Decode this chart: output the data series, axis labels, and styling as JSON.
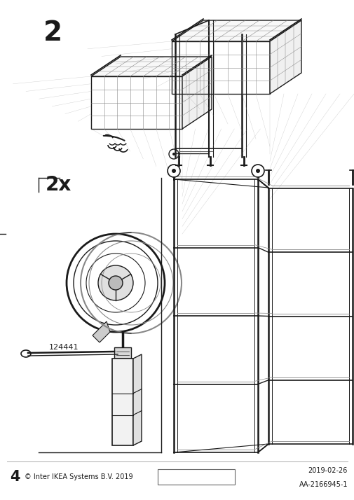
{
  "page_number": "4",
  "step_number": "2",
  "quantity_label": "2x",
  "part_number": "124441",
  "date": "2019-02-26",
  "doc_number": "AA-2166945-1",
  "copyright": "© Inter IKEA Systems B.V. 2019",
  "bg_color": "#ffffff",
  "line_color": "#1a1a1a",
  "light_gray": "#aaaaaa",
  "mid_gray": "#888888",
  "dark_gray": "#555555"
}
